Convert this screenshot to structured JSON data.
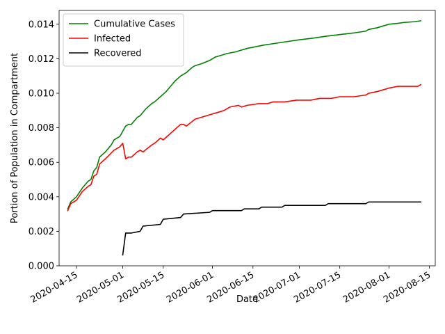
{
  "chart_data": {
    "type": "line",
    "title": "",
    "xlabel": "Date",
    "ylabel": "Portion of Population in Compartment",
    "xlim": [
      "2020-04-09",
      "2020-08-17"
    ],
    "ylim": [
      0,
      0.0148
    ],
    "xticks": [
      "2020-04-15",
      "2020-05-01",
      "2020-05-15",
      "2020-06-01",
      "2020-06-15",
      "2020-07-01",
      "2020-07-15",
      "2020-08-01",
      "2020-08-15"
    ],
    "yticks": [
      0.0,
      0.002,
      0.004,
      0.006,
      0.008,
      0.01,
      0.012,
      0.014
    ],
    "ytick_labels": [
      "0.000",
      "0.002",
      "0.004",
      "0.006",
      "0.008",
      "0.010",
      "0.012",
      "0.014"
    ],
    "grid": false,
    "legend_position": "top-left",
    "series": [
      {
        "name": "Cumulative Cases",
        "color": "#008000",
        "points": [
          [
            "2020-04-12",
            0.0033
          ],
          [
            "2020-04-13",
            0.0037
          ],
          [
            "2020-04-15",
            0.004
          ],
          [
            "2020-04-17",
            0.0045
          ],
          [
            "2020-04-19",
            0.0049
          ],
          [
            "2020-04-20",
            0.005
          ],
          [
            "2020-04-21",
            0.0055
          ],
          [
            "2020-04-22",
            0.0057
          ],
          [
            "2020-04-23",
            0.0063
          ],
          [
            "2020-04-25",
            0.0066
          ],
          [
            "2020-04-27",
            0.007
          ],
          [
            "2020-04-28",
            0.0073
          ],
          [
            "2020-04-30",
            0.0075
          ],
          [
            "2020-05-02",
            0.0081
          ],
          [
            "2020-05-03",
            0.0082
          ],
          [
            "2020-05-04",
            0.0082
          ],
          [
            "2020-05-06",
            0.0086
          ],
          [
            "2020-05-07",
            0.0087
          ],
          [
            "2020-05-09",
            0.0091
          ],
          [
            "2020-05-11",
            0.0094
          ],
          [
            "2020-05-12",
            0.0095
          ],
          [
            "2020-05-14",
            0.0098
          ],
          [
            "2020-05-16",
            0.0101
          ],
          [
            "2020-05-18",
            0.0105
          ],
          [
            "2020-05-19",
            0.0107
          ],
          [
            "2020-05-21",
            0.011
          ],
          [
            "2020-05-23",
            0.0112
          ],
          [
            "2020-05-25",
            0.0115
          ],
          [
            "2020-05-26",
            0.0116
          ],
          [
            "2020-05-28",
            0.0117
          ],
          [
            "2020-05-31",
            0.0119
          ],
          [
            "2020-06-01",
            0.012
          ],
          [
            "2020-06-02",
            0.0121
          ],
          [
            "2020-06-04",
            0.0122
          ],
          [
            "2020-06-06",
            0.0123
          ],
          [
            "2020-06-09",
            0.0124
          ],
          [
            "2020-06-11",
            0.0125
          ],
          [
            "2020-06-13",
            0.0126
          ],
          [
            "2020-06-16",
            0.0127
          ],
          [
            "2020-06-19",
            0.0128
          ],
          [
            "2020-06-23",
            0.0129
          ],
          [
            "2020-06-27",
            0.013
          ],
          [
            "2020-07-01",
            0.0131
          ],
          [
            "2020-07-06",
            0.0132
          ],
          [
            "2020-07-10",
            0.0133
          ],
          [
            "2020-07-15",
            0.0134
          ],
          [
            "2020-07-20",
            0.0135
          ],
          [
            "2020-07-24",
            0.0136
          ],
          [
            "2020-07-25",
            0.0137
          ],
          [
            "2020-07-28",
            0.0138
          ],
          [
            "2020-07-30",
            0.0139
          ],
          [
            "2020-08-01",
            0.014
          ],
          [
            "2020-08-04",
            0.01405
          ],
          [
            "2020-08-06",
            0.0141
          ],
          [
            "2020-08-10",
            0.01415
          ],
          [
            "2020-08-12",
            0.0142
          ]
        ]
      },
      {
        "name": "Infected",
        "color": "#ff0000",
        "points": [
          [
            "2020-04-12",
            0.0032
          ],
          [
            "2020-04-13",
            0.0036
          ],
          [
            "2020-04-15",
            0.0038
          ],
          [
            "2020-04-17",
            0.0043
          ],
          [
            "2020-04-19",
            0.0046
          ],
          [
            "2020-04-20",
            0.0047
          ],
          [
            "2020-04-21",
            0.0052
          ],
          [
            "2020-04-22",
            0.0053
          ],
          [
            "2020-04-23",
            0.0059
          ],
          [
            "2020-04-25",
            0.0062
          ],
          [
            "2020-04-28",
            0.0067
          ],
          [
            "2020-04-30",
            0.0069
          ],
          [
            "2020-05-01",
            0.0071
          ],
          [
            "2020-05-02",
            0.0062
          ],
          [
            "2020-05-03",
            0.0063
          ],
          [
            "2020-05-04",
            0.0063
          ],
          [
            "2020-05-06",
            0.0066
          ],
          [
            "2020-05-07",
            0.0067
          ],
          [
            "2020-05-08",
            0.0066
          ],
          [
            "2020-05-11",
            0.007
          ],
          [
            "2020-05-12",
            0.0071
          ],
          [
            "2020-05-14",
            0.0074
          ],
          [
            "2020-05-15",
            0.0073
          ],
          [
            "2020-05-19",
            0.0079
          ],
          [
            "2020-05-21",
            0.0082
          ],
          [
            "2020-05-22",
            0.0082
          ],
          [
            "2020-05-23",
            0.0081
          ],
          [
            "2020-05-26",
            0.0085
          ],
          [
            "2020-05-28",
            0.0086
          ],
          [
            "2020-06-01",
            0.0088
          ],
          [
            "2020-06-03",
            0.0089
          ],
          [
            "2020-06-05",
            0.009
          ],
          [
            "2020-06-07",
            0.0092
          ],
          [
            "2020-06-10",
            0.0093
          ],
          [
            "2020-06-11",
            0.0092
          ],
          [
            "2020-06-13",
            0.0093
          ],
          [
            "2020-06-17",
            0.0094
          ],
          [
            "2020-06-18",
            0.0094
          ],
          [
            "2020-06-20",
            0.0094
          ],
          [
            "2020-06-22",
            0.0095
          ],
          [
            "2020-06-26",
            0.0095
          ],
          [
            "2020-06-30",
            0.0096
          ],
          [
            "2020-07-03",
            0.0096
          ],
          [
            "2020-07-05",
            0.0096
          ],
          [
            "2020-07-08",
            0.0097
          ],
          [
            "2020-07-12",
            0.0097
          ],
          [
            "2020-07-15",
            0.0098
          ],
          [
            "2020-07-20",
            0.0098
          ],
          [
            "2020-07-24",
            0.0099
          ],
          [
            "2020-07-25",
            0.01
          ],
          [
            "2020-07-28",
            0.0101
          ],
          [
            "2020-07-30",
            0.0102
          ],
          [
            "2020-08-01",
            0.0103
          ],
          [
            "2020-08-04",
            0.0104
          ],
          [
            "2020-08-08",
            0.0104
          ],
          [
            "2020-08-11",
            0.0104
          ],
          [
            "2020-08-12",
            0.0105
          ]
        ]
      },
      {
        "name": "Recovered",
        "color": "#000000",
        "points": [
          [
            "2020-05-01",
            0.00063
          ],
          [
            "2020-05-02",
            0.0019
          ],
          [
            "2020-05-04",
            0.0019
          ],
          [
            "2020-05-07",
            0.002
          ],
          [
            "2020-05-08",
            0.0023
          ],
          [
            "2020-05-14",
            0.0024
          ],
          [
            "2020-05-15",
            0.0027
          ],
          [
            "2020-05-21",
            0.0028
          ],
          [
            "2020-05-22",
            0.003
          ],
          [
            "2020-05-31",
            0.0031
          ],
          [
            "2020-06-01",
            0.0032
          ],
          [
            "2020-06-04",
            0.0032
          ],
          [
            "2020-06-11",
            0.0032
          ],
          [
            "2020-06-12",
            0.0033
          ],
          [
            "2020-06-17",
            0.0033
          ],
          [
            "2020-06-18",
            0.0034
          ],
          [
            "2020-06-25",
            0.0034
          ],
          [
            "2020-06-26",
            0.0035
          ],
          [
            "2020-07-03",
            0.0035
          ],
          [
            "2020-07-04",
            0.0035
          ],
          [
            "2020-07-10",
            0.0035
          ],
          [
            "2020-07-11",
            0.0036
          ],
          [
            "2020-07-17",
            0.0036
          ],
          [
            "2020-07-18",
            0.0036
          ],
          [
            "2020-07-24",
            0.0036
          ],
          [
            "2020-07-25",
            0.0037
          ],
          [
            "2020-08-01",
            0.0037
          ],
          [
            "2020-08-02",
            0.0037
          ],
          [
            "2020-08-08",
            0.0037
          ],
          [
            "2020-08-12",
            0.0037
          ]
        ]
      }
    ]
  }
}
